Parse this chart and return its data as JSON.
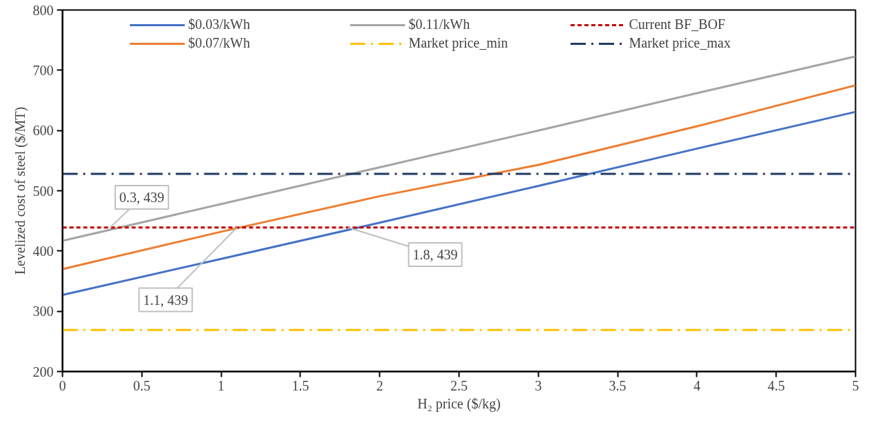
{
  "chart_data": {
    "type": "line",
    "xlabel": "H₂ price ($/kg)",
    "ylabel": "Levelized cost of steel ($/MT)",
    "x": [
      0,
      1,
      2,
      3,
      4,
      5
    ],
    "series": [
      {
        "name": "$0.03/kWh",
        "color": "#4472c4",
        "values": [
          327,
          387,
          447,
          508,
          570,
          631
        ]
      },
      {
        "name": "$0.07/kWh",
        "color": "#ed7d31",
        "values": [
          370,
          432,
          491,
          543,
          607,
          675
        ]
      },
      {
        "name": "$0.11/kWh",
        "color": "#a5a5a5",
        "values": [
          417,
          478,
          539,
          600,
          662,
          723
        ]
      }
    ],
    "ref_lines": [
      {
        "axis": "y",
        "value": 269,
        "label": "Market price_min",
        "color": "#ffc000",
        "line_style": "dashdot"
      },
      {
        "axis": "y",
        "value": 439,
        "label": "Current BF_BOF",
        "color": "#c00000",
        "line_style": "dashed"
      },
      {
        "axis": "y",
        "value": 528,
        "label": "Market price_max",
        "color": "#203864",
        "line_style": "dashdot"
      }
    ],
    "annotations": [
      {
        "text": "0.3, 439",
        "x": 0.3,
        "y": 439
      },
      {
        "text": "1.1, 439",
        "x": 1.1,
        "y": 439
      },
      {
        "text": "1.8, 439",
        "x": 1.8,
        "y": 439
      }
    ],
    "xlim": [
      0,
      5
    ],
    "xticks": [
      0,
      0.5,
      1,
      1.5,
      2,
      2.5,
      3,
      3.5,
      4,
      4.5,
      5
    ],
    "ylim": [
      200,
      800
    ],
    "yticks": [
      200,
      300,
      400,
      500,
      600,
      700,
      800
    ],
    "legend": "top",
    "grid": false,
    "marker": "none",
    "line_style": "solid"
  }
}
